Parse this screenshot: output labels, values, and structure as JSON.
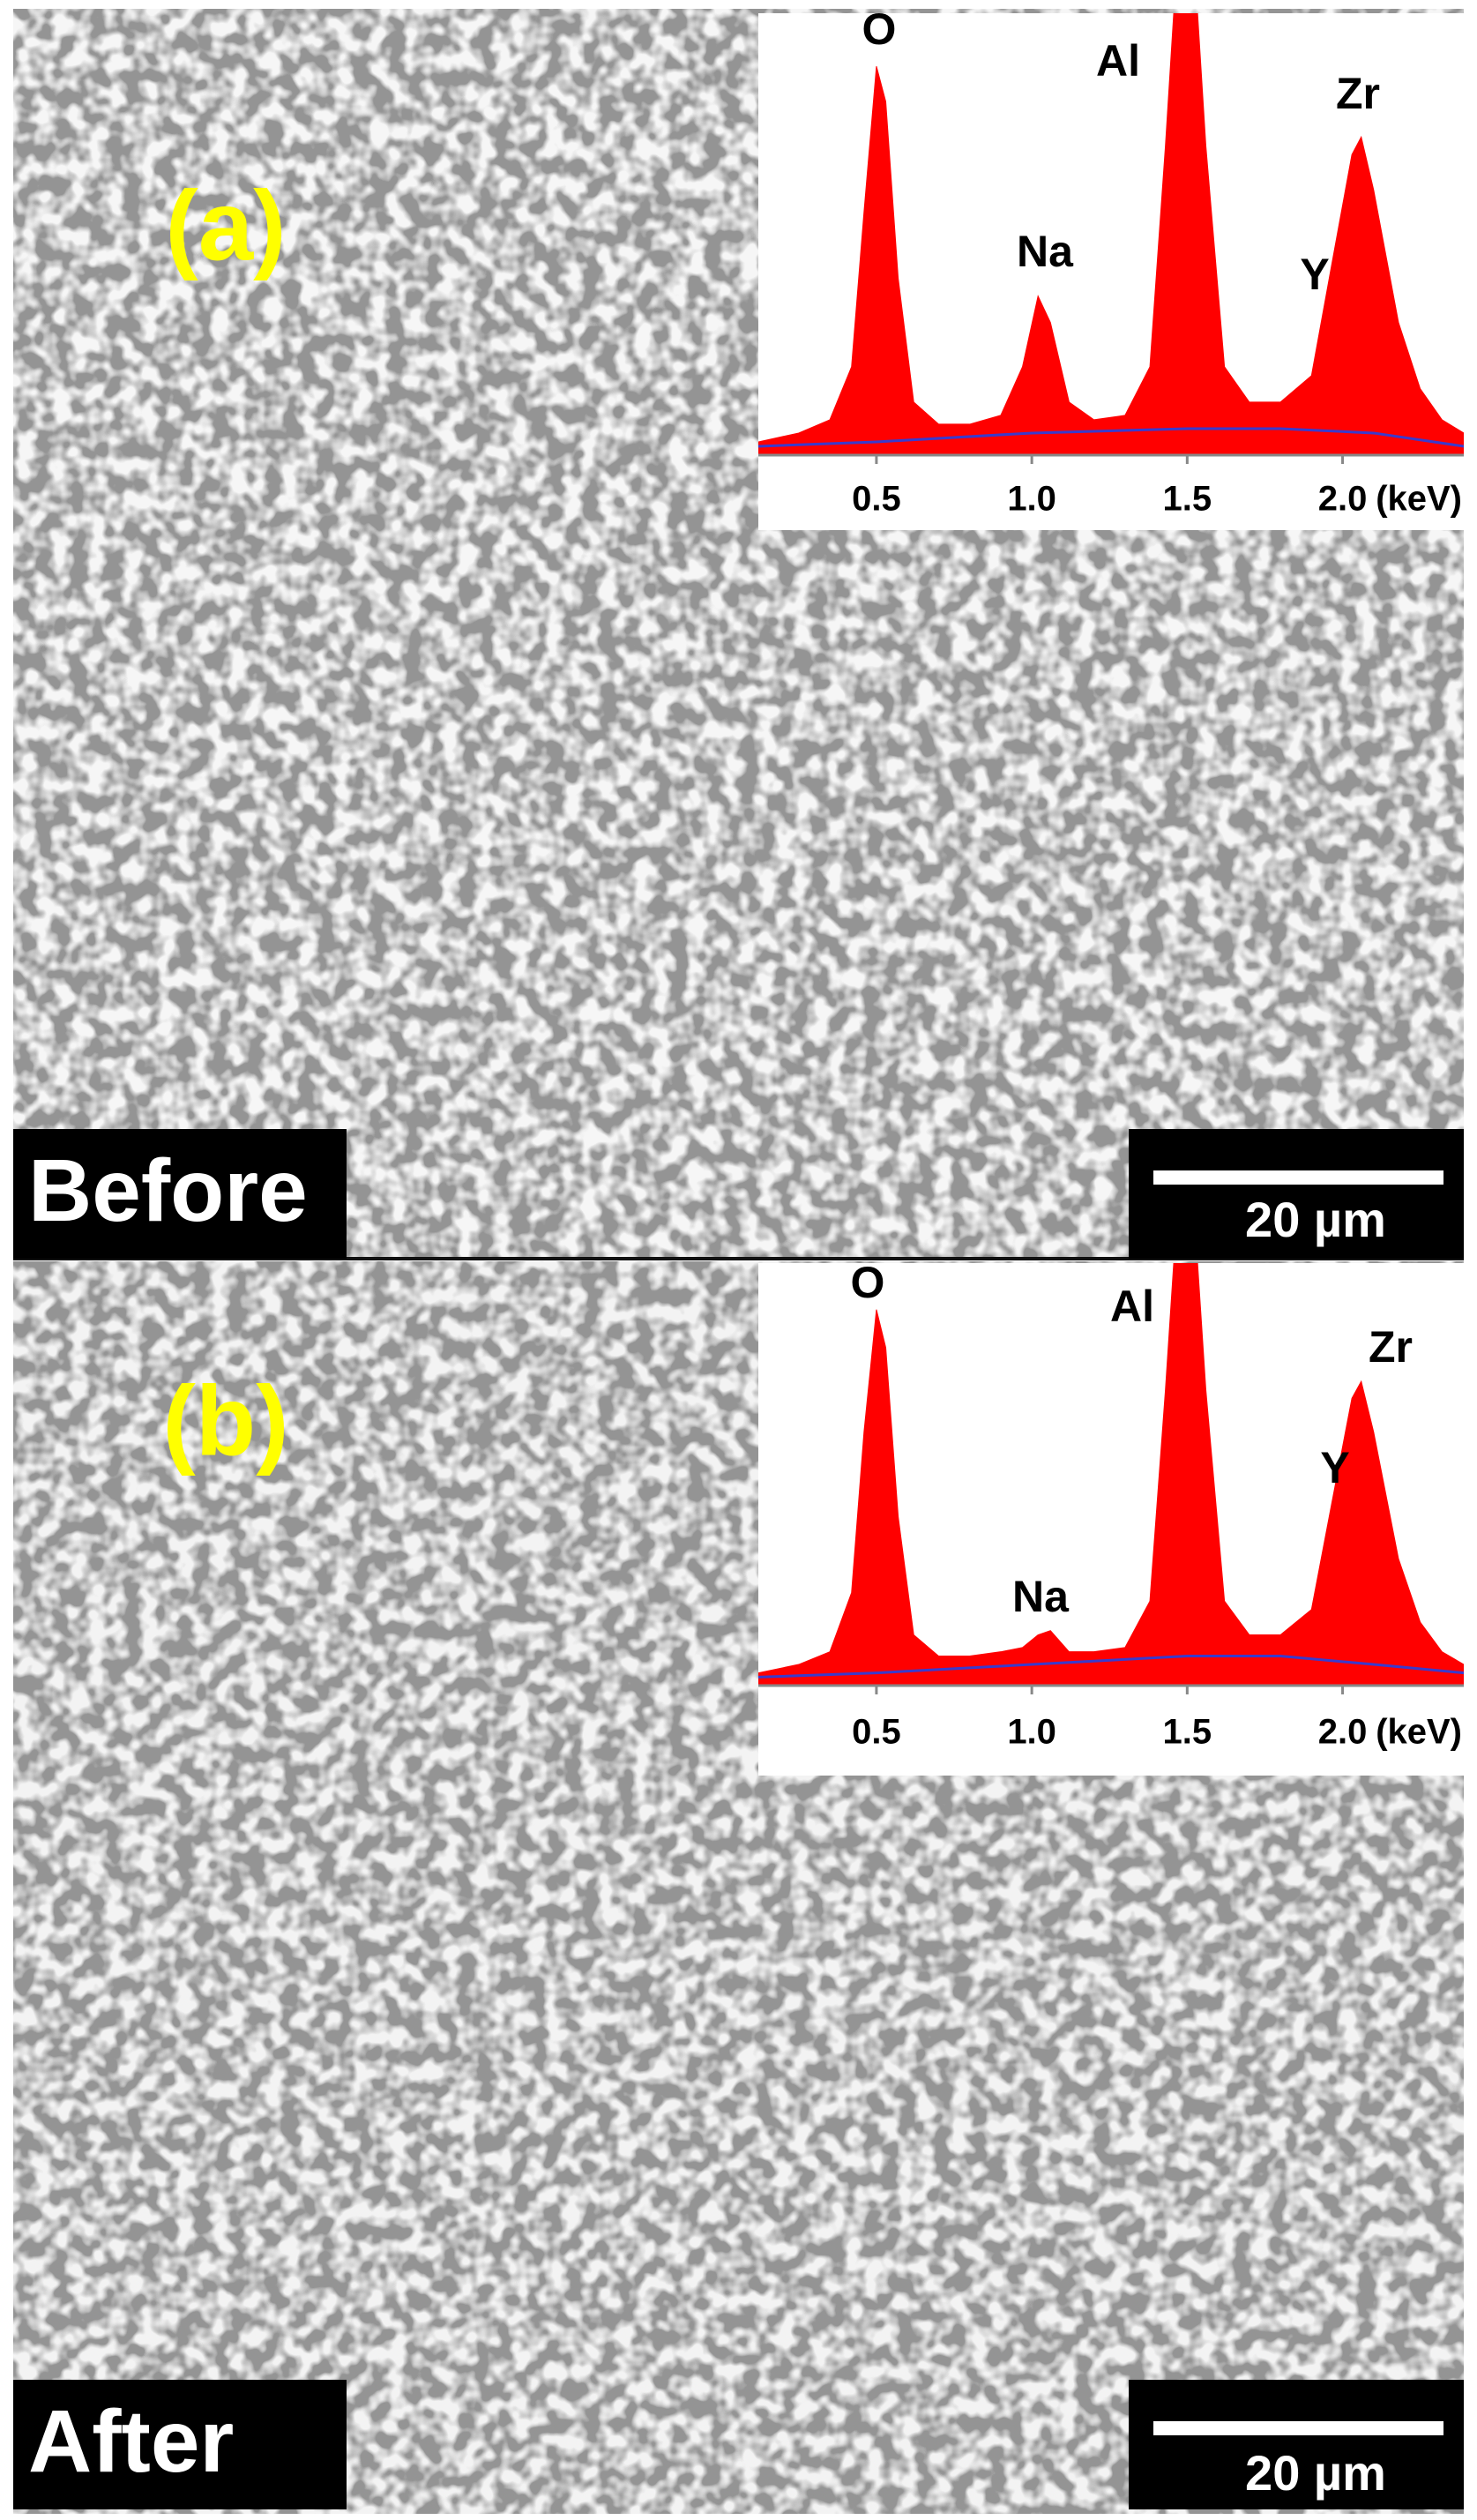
{
  "chart_data": [
    {
      "type": "area",
      "xlabel": "(keV)",
      "xlim": [
        0.12,
        2.39
      ],
      "ylim": [
        0,
        100
      ],
      "xticks": [
        0.5,
        {
          "value": 1,
          "label": "1.0"
        },
        1.5,
        {
          "value": 2,
          "label": "2.0"
        }
      ],
      "annotations": [
        "O",
        "Na",
        "Al",
        "Y",
        "Zr"
      ],
      "series": [
        {
          "type": "area",
          "color": "#ff0000",
          "x": [
            0.12,
            0.25,
            0.35,
            0.42,
            0.46,
            0.5,
            0.53,
            0.57,
            0.62,
            0.7,
            0.8,
            0.9,
            0.97,
            1.02,
            1.06,
            1.12,
            1.2,
            1.3,
            1.38,
            1.43,
            1.47,
            1.52,
            1.56,
            1.62,
            1.7,
            1.8,
            1.9,
            1.97,
            2.03,
            2.06,
            2.1,
            2.18,
            2.25,
            2.32,
            2.39
          ],
          "values": [
            3,
            5,
            8,
            20,
            55,
            88,
            80,
            40,
            12,
            7,
            7,
            9,
            20,
            36,
            30,
            12,
            8,
            9,
            20,
            70,
            115,
            115,
            70,
            20,
            12,
            12,
            18,
            45,
            68,
            72,
            60,
            30,
            15,
            8,
            5
          ]
        },
        {
          "type": "line",
          "color": "#3a3acc",
          "x": [
            0.12,
            0.5,
            1.0,
            1.5,
            1.8,
            2.1,
            2.39
          ],
          "values": [
            2,
            3,
            5,
            6,
            6,
            5,
            2
          ]
        }
      ]
    },
    {
      "type": "area",
      "xlabel": "(keV)",
      "xlim": [
        0.12,
        2.39
      ],
      "ylim": [
        0,
        100
      ],
      "xticks": [
        0.5,
        {
          "value": 1,
          "label": "1.0"
        },
        1.5,
        {
          "value": 2,
          "label": "2.0"
        }
      ],
      "annotations": [
        "O",
        "Na",
        "Al",
        "Y",
        "Zr"
      ],
      "series": [
        {
          "type": "area",
          "color": "#ff0000",
          "x": [
            0.12,
            0.25,
            0.35,
            0.42,
            0.46,
            0.5,
            0.53,
            0.57,
            0.62,
            0.7,
            0.8,
            0.9,
            0.97,
            1.02,
            1.06,
            1.12,
            1.2,
            1.3,
            1.38,
            1.43,
            1.47,
            1.52,
            1.56,
            1.62,
            1.7,
            1.8,
            1.9,
            1.97,
            2.03,
            2.06,
            2.1,
            2.18,
            2.25,
            2.32,
            2.39
          ],
          "values": [
            3,
            5,
            8,
            22,
            60,
            89,
            80,
            40,
            12,
            7,
            7,
            8,
            9,
            12,
            13,
            8,
            8,
            9,
            20,
            70,
            115,
            115,
            70,
            20,
            12,
            12,
            18,
            45,
            68,
            72,
            60,
            30,
            15,
            8,
            5
          ]
        },
        {
          "type": "line",
          "color": "#3a3acc",
          "x": [
            0.12,
            0.5,
            1.0,
            1.5,
            1.8,
            2.1,
            2.39
          ],
          "values": [
            2,
            3,
            5,
            7,
            7,
            5,
            3
          ]
        }
      ]
    }
  ],
  "panels": [
    {
      "label": "(a)",
      "caption": "Before",
      "scale_bar": "20 µm"
    },
    {
      "label": "(b)",
      "caption": "After",
      "scale_bar": "20 µm"
    }
  ]
}
